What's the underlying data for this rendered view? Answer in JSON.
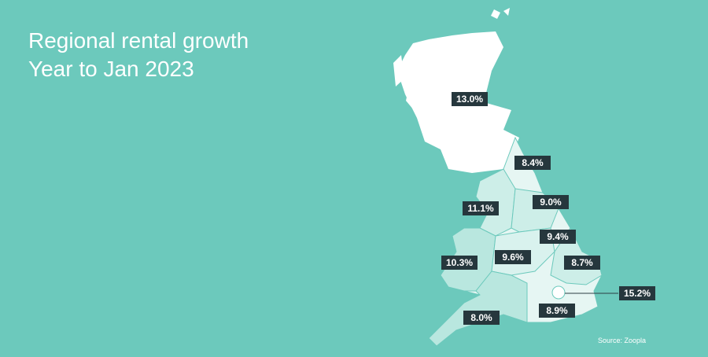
{
  "title": [
    "Regional rental growth",
    "Year to Jan 2023"
  ],
  "map": {
    "labels": [
      "13.0%",
      "8.4%",
      "11.1%",
      "9.0%",
      "9.4%",
      "10.3%",
      "9.6%",
      "8.7%",
      "15.2%",
      "8.0%",
      "8.9%"
    ]
  },
  "source": "Source: Zoopla"
}
